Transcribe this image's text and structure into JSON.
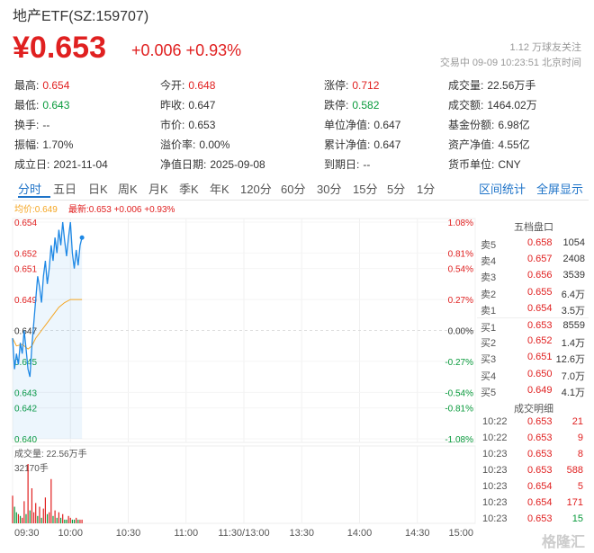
{
  "header": {
    "title": "地产ETF(SZ:159707)",
    "price": "¥0.653",
    "change": "+0.006 +0.93%",
    "followers": "1.12 万球友关注",
    "status": "交易中 09-09 10:23:51 北京时间"
  },
  "stats": [
    {
      "label": "最高:",
      "value": "0.654",
      "color": "red"
    },
    {
      "label": "今开:",
      "value": "0.648",
      "color": "red"
    },
    {
      "label": "涨停:",
      "value": "0.712",
      "color": "red"
    },
    {
      "label": "成交量:",
      "value": "22.56万手",
      "color": "dark"
    },
    {
      "label": "最低:",
      "value": "0.643",
      "color": "green"
    },
    {
      "label": "昨收:",
      "value": "0.647",
      "color": "dark"
    },
    {
      "label": "跌停:",
      "value": "0.582",
      "color": "green"
    },
    {
      "label": "成交额:",
      "value": "1464.02万",
      "color": "dark"
    },
    {
      "label": "换手:",
      "value": "--",
      "color": "dark"
    },
    {
      "label": "市价:",
      "value": "0.653",
      "color": "dark"
    },
    {
      "label": "单位净值:",
      "value": "0.647",
      "color": "dark"
    },
    {
      "label": "基金份额:",
      "value": "6.98亿",
      "color": "dark"
    },
    {
      "label": "振幅:",
      "value": "1.70%",
      "color": "dark"
    },
    {
      "label": "溢价率:",
      "value": "0.00%",
      "color": "dark"
    },
    {
      "label": "累计净值:",
      "value": "0.647",
      "color": "dark"
    },
    {
      "label": "资产净值:",
      "value": "4.55亿",
      "color": "dark"
    },
    {
      "label": "成立日:",
      "value": "2021-11-04",
      "color": "dark"
    },
    {
      "label": "净值日期:",
      "value": "2025-09-08",
      "color": "dark"
    },
    {
      "label": "到期日:",
      "value": "--",
      "color": "dark"
    },
    {
      "label": "货币单位:",
      "value": "CNY",
      "color": "dark"
    }
  ],
  "tabs": [
    "分时",
    "五日",
    "日K",
    "周K",
    "月K",
    "季K",
    "年K",
    "120分",
    "60分",
    "30分",
    "15分",
    "5分",
    "1分"
  ],
  "active_tab": "分时",
  "links": {
    "interval_stats": "区间统计",
    "fullscreen": "全屏显示"
  },
  "chart_legend": {
    "avg": "均价:0.649",
    "latest": "最新:0.653 +0.006 +0.93%"
  },
  "volume_label": "成交量: 22.56万手",
  "volume_axis_max": "32170手",
  "colors": {
    "up": "#e02020",
    "down": "#089a3b",
    "price_line": "#1e88e5",
    "avg_line": "#f5a623",
    "accent": "#1e73c8"
  },
  "chart_data": {
    "type": "line",
    "y_ticks": [
      "0.654",
      "0.652",
      "0.651",
      "0.649",
      "0.647",
      "0.645",
      "0.643",
      "0.642",
      "0.640"
    ],
    "y_tick_values": [
      0.654,
      0.652,
      0.651,
      0.649,
      0.647,
      0.645,
      0.643,
      0.642,
      0.64
    ],
    "pct_ticks": [
      "1.08%",
      "0.81%",
      "0.54%",
      "0.27%",
      "0.00%",
      "-0.27%",
      "-0.54%",
      "-0.81%",
      "-1.08%"
    ],
    "x_ticks": [
      "09:30",
      "10:00",
      "10:30",
      "11:00",
      "11:30/13:00",
      "13:30",
      "14:00",
      "14:30",
      "15:00"
    ],
    "ylim": [
      0.64,
      0.654
    ],
    "prev_close": 0.647,
    "price_series": [
      {
        "minute": 0,
        "price": 0.6465
      },
      {
        "minute": 1,
        "price": 0.6445
      },
      {
        "minute": 2,
        "price": 0.6455
      },
      {
        "minute": 3,
        "price": 0.6448
      },
      {
        "minute": 4,
        "price": 0.6462
      },
      {
        "minute": 5,
        "price": 0.6455
      },
      {
        "minute": 6,
        "price": 0.647
      },
      {
        "minute": 7,
        "price": 0.6458
      },
      {
        "minute": 8,
        "price": 0.6445
      },
      {
        "minute": 9,
        "price": 0.644
      },
      {
        "minute": 10,
        "price": 0.646
      },
      {
        "minute": 11,
        "price": 0.6475
      },
      {
        "minute": 12,
        "price": 0.649
      },
      {
        "minute": 13,
        "price": 0.6505
      },
      {
        "minute": 14,
        "price": 0.6498
      },
      {
        "minute": 15,
        "price": 0.6488
      },
      {
        "minute": 16,
        "price": 0.6505
      },
      {
        "minute": 17,
        "price": 0.6515
      },
      {
        "minute": 18,
        "price": 0.65
      },
      {
        "minute": 19,
        "price": 0.651
      },
      {
        "minute": 20,
        "price": 0.6525
      },
      {
        "minute": 21,
        "price": 0.6515
      },
      {
        "minute": 22,
        "price": 0.653
      },
      {
        "minute": 23,
        "price": 0.652
      },
      {
        "minute": 24,
        "price": 0.6535
      },
      {
        "minute": 25,
        "price": 0.6525
      },
      {
        "minute": 26,
        "price": 0.654
      },
      {
        "minute": 27,
        "price": 0.6528
      },
      {
        "minute": 28,
        "price": 0.6518
      },
      {
        "minute": 29,
        "price": 0.653
      },
      {
        "minute": 30,
        "price": 0.654
      },
      {
        "minute": 31,
        "price": 0.652
      },
      {
        "minute": 32,
        "price": 0.651
      },
      {
        "minute": 33,
        "price": 0.6522
      },
      {
        "minute": 34,
        "price": 0.6512
      },
      {
        "minute": 35,
        "price": 0.6525
      },
      {
        "minute": 36,
        "price": 0.653
      }
    ],
    "avg_series": [
      {
        "minute": 0,
        "price": 0.6465
      },
      {
        "minute": 2,
        "price": 0.646
      },
      {
        "minute": 5,
        "price": 0.6461
      },
      {
        "minute": 8,
        "price": 0.6458
      },
      {
        "minute": 10,
        "price": 0.646
      },
      {
        "minute": 12,
        "price": 0.6465
      },
      {
        "minute": 15,
        "price": 0.647
      },
      {
        "minute": 18,
        "price": 0.6475
      },
      {
        "minute": 21,
        "price": 0.648
      },
      {
        "minute": 24,
        "price": 0.6485
      },
      {
        "minute": 27,
        "price": 0.6488
      },
      {
        "minute": 30,
        "price": 0.649
      },
      {
        "minute": 33,
        "price": 0.649
      },
      {
        "minute": 36,
        "price": 0.649
      }
    ],
    "volume_max": 32170,
    "volumes": [
      {
        "minute": 0,
        "value": 15000,
        "dir": "up"
      },
      {
        "minute": 1,
        "value": 9000,
        "dir": "down"
      },
      {
        "minute": 2,
        "value": 6000,
        "dir": "down"
      },
      {
        "minute": 3,
        "value": 5000,
        "dir": "up"
      },
      {
        "minute": 4,
        "value": 4000,
        "dir": "down"
      },
      {
        "minute": 5,
        "value": 3000,
        "dir": "up"
      },
      {
        "minute": 6,
        "value": 12000,
        "dir": "up"
      },
      {
        "minute": 7,
        "value": 5000,
        "dir": "down"
      },
      {
        "minute": 8,
        "value": 32170,
        "dir": "up"
      },
      {
        "minute": 9,
        "value": 7000,
        "dir": "down"
      },
      {
        "minute": 10,
        "value": 19000,
        "dir": "up"
      },
      {
        "minute": 11,
        "value": 6000,
        "dir": "up"
      },
      {
        "minute": 12,
        "value": 11000,
        "dir": "up"
      },
      {
        "minute": 13,
        "value": 4000,
        "dir": "down"
      },
      {
        "minute": 14,
        "value": 9000,
        "dir": "up"
      },
      {
        "minute": 15,
        "value": 3000,
        "dir": "down"
      },
      {
        "minute": 16,
        "value": 8000,
        "dir": "up"
      },
      {
        "minute": 17,
        "value": 14000,
        "dir": "up"
      },
      {
        "minute": 18,
        "value": 5000,
        "dir": "down"
      },
      {
        "minute": 19,
        "value": 6000,
        "dir": "up"
      },
      {
        "minute": 20,
        "value": 24000,
        "dir": "up"
      },
      {
        "minute": 21,
        "value": 4000,
        "dir": "down"
      },
      {
        "minute": 22,
        "value": 7000,
        "dir": "up"
      },
      {
        "minute": 23,
        "value": 3000,
        "dir": "down"
      },
      {
        "minute": 24,
        "value": 6000,
        "dir": "up"
      },
      {
        "minute": 25,
        "value": 3000,
        "dir": "down"
      },
      {
        "minute": 26,
        "value": 5000,
        "dir": "up"
      },
      {
        "minute": 27,
        "value": 2000,
        "dir": "down"
      },
      {
        "minute": 28,
        "value": 2000,
        "dir": "down"
      },
      {
        "minute": 29,
        "value": 4000,
        "dir": "up"
      },
      {
        "minute": 30,
        "value": 3000,
        "dir": "up"
      },
      {
        "minute": 31,
        "value": 2000,
        "dir": "down"
      },
      {
        "minute": 32,
        "value": 2000,
        "dir": "down"
      },
      {
        "minute": 33,
        "value": 3000,
        "dir": "up"
      },
      {
        "minute": 34,
        "value": 2000,
        "dir": "down"
      },
      {
        "minute": 35,
        "value": 2000,
        "dir": "up"
      },
      {
        "minute": 36,
        "value": 2000,
        "dir": "up"
      }
    ]
  },
  "orderbook": {
    "title": "五档盘口",
    "rows": [
      {
        "label": "卖5",
        "price": "0.658",
        "volume": "1054",
        "color": "red"
      },
      {
        "label": "卖4",
        "price": "0.657",
        "volume": "2408",
        "color": "red"
      },
      {
        "label": "卖3",
        "price": "0.656",
        "volume": "3539",
        "color": "red"
      },
      {
        "label": "卖2",
        "price": "0.655",
        "volume": "6.4万",
        "color": "red"
      },
      {
        "label": "卖1",
        "price": "0.654",
        "volume": "3.5万",
        "color": "red"
      },
      {
        "label": "买1",
        "price": "0.653",
        "volume": "8559",
        "color": "red"
      },
      {
        "label": "买2",
        "price": "0.652",
        "volume": "1.4万",
        "color": "red"
      },
      {
        "label": "买3",
        "price": "0.651",
        "volume": "12.6万",
        "color": "red"
      },
      {
        "label": "买4",
        "price": "0.650",
        "volume": "7.0万",
        "color": "red"
      },
      {
        "label": "买5",
        "price": "0.649",
        "volume": "4.1万",
        "color": "red"
      }
    ]
  },
  "trades": {
    "title": "成交明细",
    "rows": [
      {
        "time": "10:22",
        "price": "0.653",
        "volume": "21",
        "color": "red"
      },
      {
        "time": "10:22",
        "price": "0.653",
        "volume": "9",
        "color": "red"
      },
      {
        "time": "10:23",
        "price": "0.653",
        "volume": "8",
        "color": "red"
      },
      {
        "time": "10:23",
        "price": "0.653",
        "volume": "588",
        "color": "red"
      },
      {
        "time": "10:23",
        "price": "0.654",
        "volume": "5",
        "color": "red"
      },
      {
        "time": "10:23",
        "price": "0.654",
        "volume": "171",
        "color": "red"
      },
      {
        "time": "10:23",
        "price": "0.653",
        "volume": "15",
        "color": "green"
      }
    ]
  },
  "watermark": "格隆汇"
}
